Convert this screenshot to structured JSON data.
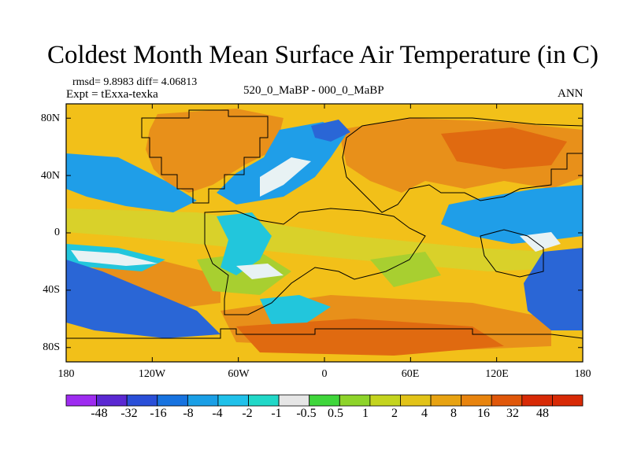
{
  "figure": {
    "title": "Coldest Month Mean Surface Air Temperature (in C)",
    "stats": "rmsd= 9.8983 diff= 4.06813",
    "experiment": "Expt = tExxa-texka",
    "comparison": "520_0_MaBP - 000_0_MaBP",
    "season": "ANN"
  },
  "axes": {
    "lat_labels": [
      "80N",
      "40N",
      "0",
      "40S",
      "80S"
    ],
    "lat_values": [
      80,
      40,
      0,
      -40,
      -80
    ],
    "lon_labels": [
      "180",
      "120W",
      "60W",
      "0",
      "60E",
      "120E",
      "180"
    ],
    "lon_values": [
      -180,
      -120,
      -60,
      0,
      60,
      120,
      180
    ]
  },
  "colorbar": {
    "labels": [
      "-48",
      "-32",
      "-16",
      "-8",
      "-4",
      "-2",
      "-1",
      "-0.5",
      "0.5",
      "1",
      "2",
      "4",
      "8",
      "16",
      "32",
      "48"
    ],
    "colors": [
      "#9e2cf0",
      "#5a28d2",
      "#2a4fd8",
      "#1773e0",
      "#1a9fe6",
      "#20c1ea",
      "#21d8c8",
      "#e6e6e6",
      "#3fd63b",
      "#8ed42a",
      "#c4d41e",
      "#e2c318",
      "#e8a312",
      "#e8840e",
      "#e0570a",
      "#d82a06",
      "#d82a06"
    ]
  },
  "map_colors": {
    "ocean": "#f2c019",
    "warm": "#e8901a",
    "hot": "#e06a10",
    "mild": "#d9d12a",
    "green": "#a8cf30",
    "cyan": "#22c6dc",
    "blue": "#1f9ee8",
    "deep": "#2a66d6",
    "pale": "#e8f2f4"
  }
}
